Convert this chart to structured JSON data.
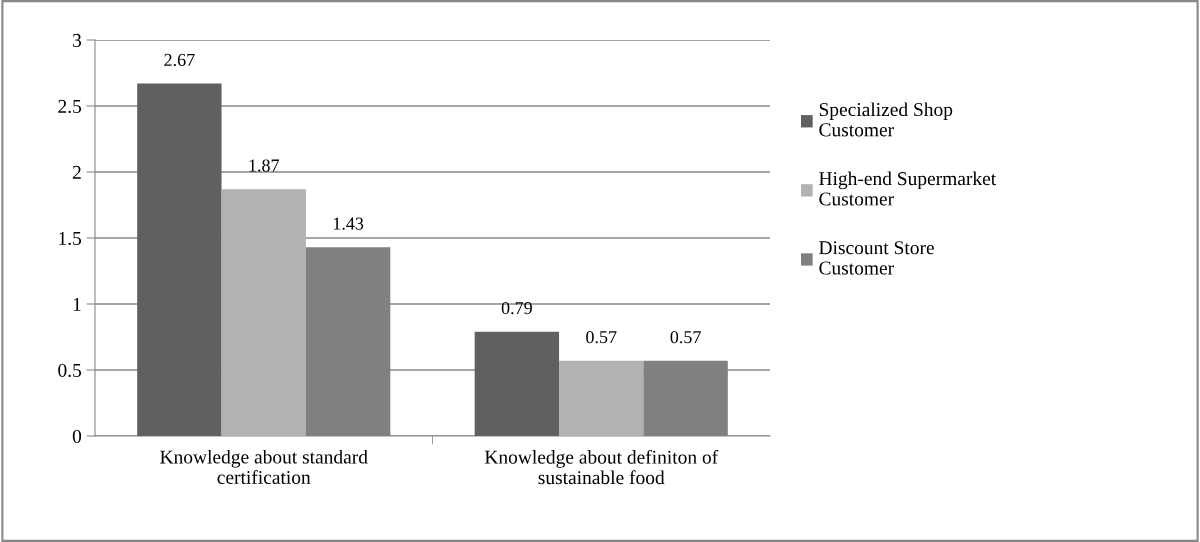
{
  "chart_data": {
    "type": "bar",
    "categories": [
      "Knowledge about standard\ncertification",
      "Knowledge about definiton of\nsustainable food"
    ],
    "series": [
      {
        "name": "Specialized Shop\nCustomer",
        "color": "#606060",
        "values": [
          2.67,
          0.79
        ]
      },
      {
        "name": "High-end Supermarket\nCustomer",
        "color": "#b2b2b2",
        "values": [
          1.87,
          0.57
        ]
      },
      {
        "name": "Discount Store\nCustomer",
        "color": "#808080",
        "values": [
          1.43,
          0.57
        ]
      }
    ],
    "ylim": [
      0,
      3
    ],
    "yticks": [
      0,
      0.5,
      1,
      1.5,
      2,
      2.5,
      3
    ],
    "grid": "y",
    "legend": "right",
    "data_labels": true
  }
}
